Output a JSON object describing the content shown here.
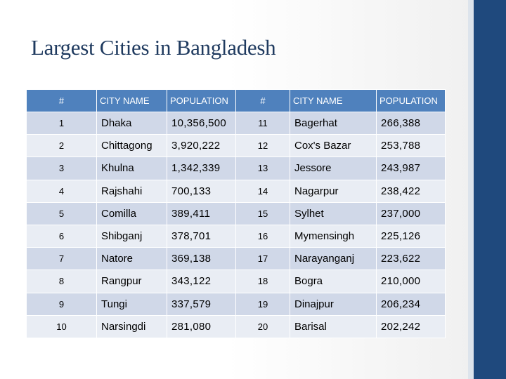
{
  "title": "Largest Cities in Bangladesh",
  "table": {
    "headers": [
      "#",
      "CITY NAME",
      "POPULATION",
      "#",
      "CITY NAME",
      "POPULATION"
    ],
    "rows": [
      [
        "1",
        "Dhaka",
        "10,356,500",
        "11",
        "Bagerhat",
        "266,388"
      ],
      [
        "2",
        "Chittagong",
        "3,920,222",
        "12",
        "Cox's Bazar",
        "253,788"
      ],
      [
        "3",
        "Khulna",
        "1,342,339",
        "13",
        "Jessore",
        "243,987"
      ],
      [
        "4",
        "Rajshahi",
        "700,133",
        "14",
        "Nagarpur",
        "238,422"
      ],
      [
        "5",
        "Comilla",
        "389,411",
        "15",
        "Sylhet",
        "237,000"
      ],
      [
        "6",
        "Shibganj",
        "378,701",
        "16",
        "Mymensingh",
        "225,126"
      ],
      [
        "7",
        "Natore",
        "369,138",
        "17",
        "Narayanganj",
        "223,622"
      ],
      [
        "8",
        "Rangpur",
        "343,122",
        "18",
        "Bogra",
        "210,000"
      ],
      [
        "9",
        "Tungi",
        "337,579",
        "19",
        "Dinajpur",
        "206,234"
      ],
      [
        "10",
        "Narsingdi",
        "281,080",
        "20",
        "Barisal",
        "202,242"
      ]
    ]
  },
  "colors": {
    "header_fill": "#4f81bd",
    "row_fill_dark": "#d0d8e8",
    "row_fill_light": "#e9edf4",
    "accent_bar": "#1f497d"
  }
}
